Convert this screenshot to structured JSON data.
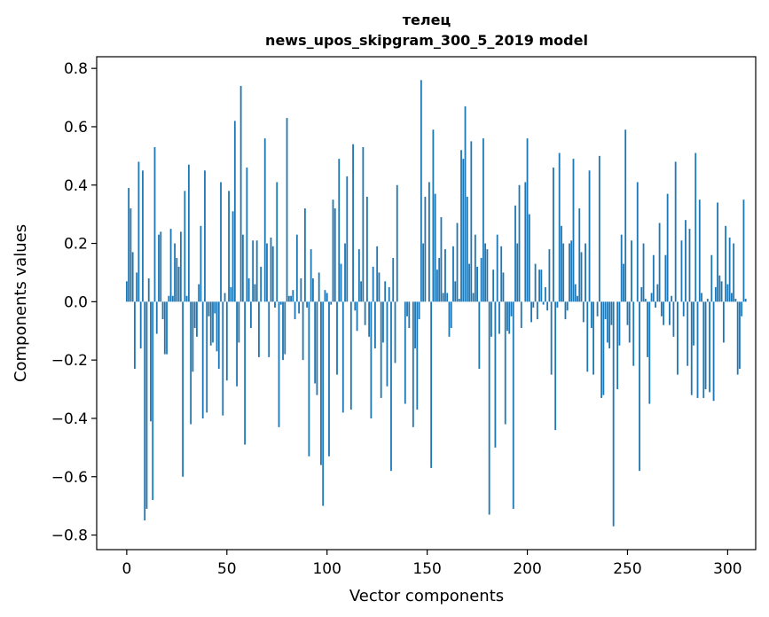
{
  "chart_data": {
    "type": "bar",
    "title": "телец",
    "subtitle": "news_upos_skipgram_300_5_2019 model",
    "xlabel": "Vector components",
    "ylabel": "Components values",
    "xlim": [
      -15,
      314
    ],
    "ylim": [
      -0.85,
      0.84
    ],
    "xticks": [
      0,
      50,
      100,
      150,
      200,
      250,
      300
    ],
    "yticks": [
      -0.8,
      -0.6,
      -0.4,
      -0.2,
      0.0,
      0.2,
      0.4,
      0.6,
      0.8
    ],
    "ytick_labels": [
      "−0.8",
      "−0.6",
      "−0.4",
      "−0.2",
      "0.0",
      "0.2",
      "0.4",
      "0.6",
      "0.8"
    ],
    "bar_color": "#1f77b4",
    "values": [
      0.07,
      0.39,
      0.32,
      0.17,
      -0.23,
      0.1,
      0.48,
      -0.16,
      0.45,
      -0.75,
      -0.71,
      0.08,
      -0.41,
      -0.68,
      0.53,
      -0.11,
      0.23,
      0.24,
      -0.06,
      -0.18,
      -0.18,
      0.02,
      0.25,
      0.02,
      0.2,
      0.15,
      0.12,
      0.24,
      -0.6,
      0.38,
      0.02,
      0.47,
      -0.42,
      -0.24,
      -0.09,
      -0.12,
      0.06,
      0.26,
      -0.4,
      0.45,
      -0.38,
      -0.05,
      -0.15,
      -0.14,
      -0.04,
      -0.17,
      -0.23,
      0.41,
      -0.39,
      0.03,
      -0.27,
      0.38,
      0.05,
      0.31,
      0.62,
      -0.29,
      -0.14,
      0.74,
      0.23,
      -0.49,
      0.46,
      0.08,
      -0.09,
      0.21,
      0.06,
      0.21,
      -0.19,
      0.12,
      0.0,
      0.56,
      0.2,
      -0.19,
      0.22,
      0.19,
      -0.02,
      0.41,
      -0.43,
      -0.01,
      -0.2,
      -0.18,
      0.63,
      0.02,
      0.02,
      0.04,
      -0.06,
      0.23,
      -0.04,
      0.08,
      -0.2,
      0.32,
      -0.02,
      -0.53,
      0.18,
      0.08,
      -0.28,
      -0.32,
      0.1,
      -0.56,
      -0.7,
      0.04,
      0.03,
      -0.53,
      -0.01,
      0.35,
      0.32,
      -0.25,
      0.49,
      0.13,
      -0.38,
      0.2,
      0.43,
      0.0,
      -0.37,
      0.54,
      -0.03,
      -0.1,
      0.18,
      0.07,
      0.53,
      -0.08,
      0.36,
      -0.12,
      -0.4,
      0.12,
      -0.16,
      0.19,
      0.1,
      -0.33,
      -0.14,
      0.07,
      -0.29,
      0.05,
      -0.58,
      0.15,
      -0.21,
      0.4,
      0.0,
      0.0,
      0.0,
      -0.35,
      -0.05,
      -0.09,
      0.0,
      -0.43,
      -0.16,
      -0.37,
      -0.06,
      0.76,
      0.2,
      0.36,
      0.0,
      0.41,
      -0.57,
      0.59,
      0.37,
      0.11,
      0.15,
      0.29,
      0.03,
      0.18,
      0.03,
      -0.12,
      -0.09,
      0.19,
      0.07,
      0.27,
      0.01,
      0.52,
      0.49,
      0.67,
      0.36,
      0.13,
      0.55,
      0.03,
      0.23,
      0.12,
      -0.23,
      0.15,
      0.56,
      0.2,
      0.18,
      -0.73,
      -0.12,
      0.11,
      -0.5,
      0.23,
      -0.11,
      0.19,
      0.1,
      -0.42,
      -0.1,
      -0.11,
      -0.05,
      -0.71,
      0.33,
      0.2,
      0.4,
      -0.09,
      0.0,
      0.41,
      0.56,
      0.3,
      -0.07,
      -0.02,
      0.13,
      -0.06,
      0.11,
      0.11,
      -0.01,
      0.05,
      -0.03,
      0.18,
      -0.25,
      0.46,
      -0.44,
      -0.02,
      0.51,
      0.26,
      0.2,
      -0.06,
      -0.03,
      0.2,
      0.21,
      0.49,
      0.06,
      0.02,
      0.32,
      0.17,
      -0.07,
      0.2,
      -0.24,
      0.45,
      -0.09,
      -0.25,
      0.0,
      -0.05,
      0.5,
      -0.33,
      -0.32,
      -0.06,
      -0.14,
      -0.16,
      -0.08,
      -0.77,
      0.0,
      -0.3,
      -0.15,
      0.23,
      0.13,
      0.59,
      -0.08,
      -0.14,
      0.21,
      -0.22,
      0.0,
      0.41,
      -0.58,
      0.05,
      0.2,
      0.01,
      -0.19,
      -0.35,
      0.03,
      0.16,
      -0.02,
      0.06,
      0.27,
      -0.05,
      -0.08,
      0.16,
      0.37,
      -0.08,
      0.02,
      -0.12,
      0.48,
      -0.25,
      0.0,
      0.21,
      -0.05,
      0.28,
      -0.22,
      0.25,
      -0.32,
      -0.15,
      0.51,
      -0.33,
      0.35,
      0.03,
      -0.33,
      -0.3,
      0.01,
      -0.31,
      0.16,
      -0.34,
      0.05,
      0.34,
      0.09,
      0.07,
      -0.14,
      0.26,
      0.06,
      0.22,
      0.03,
      0.2,
      0.01,
      -0.25,
      -0.23,
      -0.05,
      0.35,
      0.01
    ]
  }
}
